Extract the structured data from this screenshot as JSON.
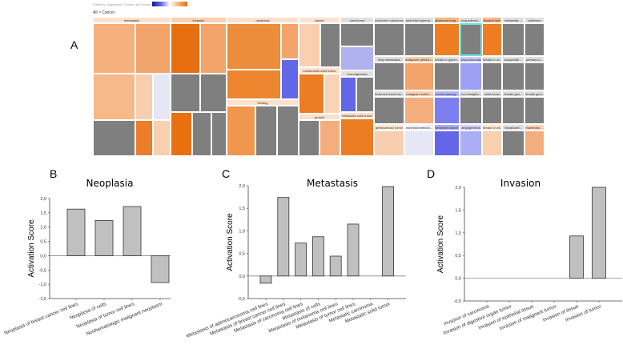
{
  "panel_letters": {
    "a": "A",
    "b": "B",
    "c": "C",
    "d": "D"
  },
  "treemap": {
    "legend_text": "Sized by -log(pvalue)   Colored by z-score",
    "breadcrumb": "All > Cancer",
    "colors": {
      "gray": "#7f7f7f",
      "orange_dark": "#e86f0f",
      "blue": "#6466e8"
    },
    "headers": [
      {
        "label": "metastasis",
        "color": "#fbe0cc"
      },
      {
        "label": "invasion",
        "color": "#f9d0b0"
      },
      {
        "label": "neoplasia",
        "color": "#fbe0cc"
      },
      {
        "label": "cancer",
        "color": "#fbe3d2"
      },
      {
        "label": "carcinoma",
        "color": "#e0e0e0"
      },
      {
        "label": "binding",
        "color": "#fbe0cc"
      },
      {
        "label": "extracranial solid tumor",
        "color": "#fbe0cc"
      },
      {
        "label": "growth",
        "color": "#fbe0cc"
      },
      {
        "label": "tumorigenesis",
        "color": "#e0e0e0"
      },
      {
        "label": "metastatic solid tumor",
        "color": "#fbe0cc"
      }
    ],
    "cells": [
      "#f5b07d",
      "#f0a36a",
      "#f5b98a",
      "#f8cfae",
      "#e6e6f5",
      "#7f7f7f",
      "#ec7d2a",
      "#f8d0b0",
      "#e86f0f",
      "#f2a46a",
      "#7f7f7f",
      "#7f7f7f",
      "#e8700f",
      "#7f7f7f",
      "#7f7f7f",
      "#ec8d3c",
      "#f2a46a",
      "#ec8730",
      "#6466e8",
      "#f0964d",
      "#7f7f7f",
      "#7f7f7f",
      "#f9cfb0",
      "#7f7f7f",
      "#ec7d22",
      "#f9d3b6",
      "#7f7f7f",
      "#f4ae7d",
      "#7f7f7f",
      "#b0b2f0",
      "#6466e8",
      "#7f7f7f",
      "#ec7d22"
    ],
    "labeled_tiles": [
      [
        {
          "label": "endocrine carcinoma",
          "color": "#7f7f7f"
        },
        {
          "label": "lung metastasis",
          "color": "#7f7f7f"
        },
        {
          "label": "head and neck car...",
          "color": "#7f7f7f"
        },
        {
          "label": "genitourinary tumor",
          "color": "#f8cfae"
        }
      ],
      [
        {
          "label": "epithelial hyperpl...",
          "color": "#7f7f7f"
        },
        {
          "label": "malignant genitou...",
          "color": "#f2a46a"
        },
        {
          "label": "malignant solid t...",
          "color": "#f4ae7d"
        },
        {
          "label": "nonendometrioid...",
          "color": "#e6e6f5"
        }
      ],
      [
        {
          "label": "advanced lung ...",
          "color": "#ec7d22"
        },
        {
          "label": "breast or gynec...",
          "color": "#7f7f7f"
        },
        {
          "label": "nonhematologi...",
          "color": "#7b7ef0"
        },
        {
          "label": "lymphoid cancer",
          "color": "#6466e8"
        }
      ],
      [
        {
          "label": "lung adenoc...",
          "color": "#7f7f7f",
          "selected": true
        },
        {
          "label": "lymphohemato...",
          "color": "#9d9ff5"
        },
        {
          "label": "non-Hodgkin...",
          "color": "#7f7f7f"
        },
        {
          "label": "angiogenesis",
          "color": "#acaef5"
        }
      ],
      [
        {
          "label": "visceral met...",
          "color": "#ec7d22"
        },
        {
          "label": "breast or ov...",
          "color": "#7f7f7f"
        },
        {
          "label": "solid tumor",
          "color": "#7f7f7f"
        },
        {
          "label": "breast or ovi...",
          "color": "#f8d0b0"
        }
      ],
      [
        {
          "label": "metastatic ...",
          "color": "#7f7f7f"
        },
        {
          "label": "anogenital ...",
          "color": "#7f7f7f"
        },
        {
          "label": "female gen...",
          "color": "#7f7f7f"
        },
        {
          "label": "hepatocell...",
          "color": "#7f7f7f"
        }
      ],
      [
        {
          "label": "adhesion",
          "color": "#7f7f7f"
        },
        {
          "label": "primary tu...",
          "color": "#7f7f7f"
        },
        {
          "label": "female geni...",
          "color": "#7f7f7f"
        },
        {
          "label": "mammary ...",
          "color": "#f4ae7d"
        }
      ]
    ]
  },
  "chart_data": [
    {
      "type": "bar",
      "title": "Neoplasia",
      "ylabel": "Activation Score",
      "xlabel": "",
      "ylim": [
        -1.5,
        2.0
      ],
      "yticks": [
        2.0,
        1.5,
        1.0,
        0.5,
        0.0,
        -0.5,
        -1.0,
        -1.5
      ],
      "ytick_labels": [
        "2,0",
        "1,5",
        "1,0",
        "0,5",
        "0,0",
        "-0,5",
        "-1,0",
        "-1,5"
      ],
      "categories": [
        "Neoplasia of breast cancer cell lines",
        "Neoplasia of cells",
        "Neoplasia of tumor cell lines",
        "Nonhematologic malignant neoplasm"
      ],
      "values": [
        1.63,
        1.23,
        1.72,
        -0.94
      ],
      "bar_color": "#c0c0c0"
    },
    {
      "type": "bar",
      "title": "Metastasis",
      "ylabel": "Activation Score",
      "xlabel": "",
      "ylim": [
        -0.5,
        2.0
      ],
      "yticks": [
        2.0,
        1.5,
        1.0,
        0.5,
        0.0,
        -0.5
      ],
      "ytick_labels": [
        "2,0",
        "1,5",
        "1,0",
        "0,5",
        "0,0",
        "-0,5"
      ],
      "categories": [
        "Metastasis of adenocarcinoma cell lines",
        "Metastasis of breast cancer cell lines",
        "Metastasis of carcinoma cell lines",
        "Metastasis of cells",
        "Metastasis of melanoma cell lines",
        "Metastasis of tumor cell lines",
        "Metastatic carcinoma",
        "Metastatic solid tumor"
      ],
      "values": [
        -0.16,
        1.74,
        0.73,
        0.87,
        0.44,
        1.15,
        0.0,
        1.98
      ],
      "bar_color": "#c0c0c0"
    },
    {
      "type": "bar",
      "title": "Invasion",
      "ylabel": "Activation Score",
      "xlabel": "",
      "ylim": [
        -0.5,
        2.0
      ],
      "yticks": [
        2.0,
        1.5,
        1.0,
        0.5,
        0.0,
        -0.5
      ],
      "ytick_labels": [
        "2,0",
        "1,5",
        "1,0",
        "0,5",
        "0,0",
        "-0,5"
      ],
      "categories": [
        "Invasion of carcinoma",
        "Invasion of digestive organ tumor",
        "Invasion of epithelial tissue",
        "Invasion of malignant tumor",
        "Invasion of tissue",
        "Invasion of tumor"
      ],
      "values": [
        0.0,
        0.0,
        0.0,
        0.0,
        0.93,
        2.0
      ],
      "bar_color": "#c0c0c0"
    }
  ]
}
